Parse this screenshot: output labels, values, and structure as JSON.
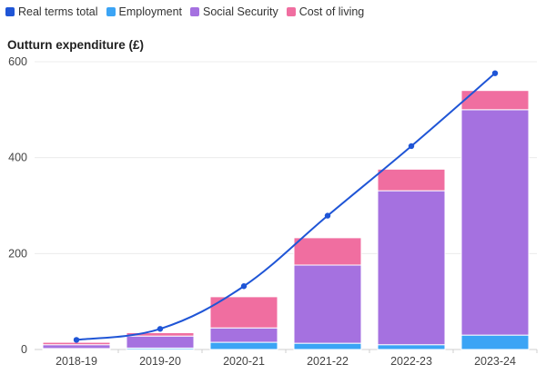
{
  "legend": {
    "real_terms_total": "Real terms total",
    "employment": "Employment",
    "social_security": "Social Security",
    "cost_of_living": "Cost of living"
  },
  "colors": {
    "real_terms_total": "#1f55d6",
    "employment": "#3ba4f5",
    "social_security": "#a571e0",
    "cost_of_living": "#f06ea0"
  },
  "chart_data": {
    "type": "bar",
    "stacked": true,
    "ylabel": "Outturn expenditure (£)",
    "ylim": [
      0,
      600
    ],
    "yticks": [
      0,
      200,
      400,
      600
    ],
    "categories": [
      "2018-19",
      "2019-20",
      "2020-21",
      "2021-22",
      "2022-23",
      "2023-24"
    ],
    "series": [
      {
        "name": "Employment",
        "values": [
          2,
          3,
          15,
          13,
          10,
          30
        ]
      },
      {
        "name": "Social Security",
        "values": [
          8,
          25,
          30,
          163,
          321,
          470
        ]
      },
      {
        "name": "Cost of living",
        "values": [
          5,
          7,
          65,
          57,
          45,
          40
        ]
      }
    ],
    "line": {
      "name": "Real terms total",
      "values": [
        20,
        43,
        132,
        279,
        424,
        576
      ]
    },
    "grid": true,
    "legend_position": "top-left"
  }
}
